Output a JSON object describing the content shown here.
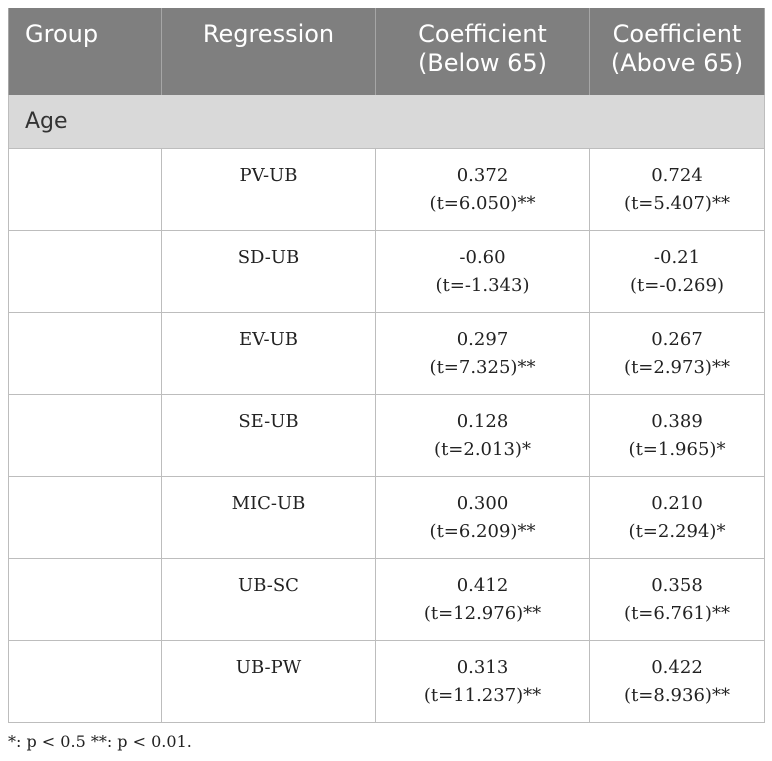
{
  "table": {
    "headers": {
      "group": "Group",
      "regression": "Regression",
      "coef_below": [
        "Coefficient",
        "(Below 65)"
      ],
      "coef_above": [
        "Coefficient",
        "(Above 65)"
      ]
    },
    "group_label": "Age",
    "rows": [
      {
        "group": "",
        "regression": "PV-UB",
        "below_coef": "0.372",
        "below_t": "(t=6.050)**",
        "above_coef": "0.724",
        "above_t": "(t=5.407)**"
      },
      {
        "group": "",
        "regression": "SD-UB",
        "below_coef": "-0.60",
        "below_t": "(t=-1.343)",
        "above_coef": "-0.21",
        "above_t": "(t=-0.269)"
      },
      {
        "group": "",
        "regression": "EV-UB",
        "below_coef": "0.297",
        "below_t": "(t=7.325)**",
        "above_coef": "0.267",
        "above_t": "(t=2.973)**"
      },
      {
        "group": "",
        "regression": "SE-UB",
        "below_coef": "0.128",
        "below_t": "(t=2.013)*",
        "above_coef": "0.389",
        "above_t": "(t=1.965)*"
      },
      {
        "group": "",
        "regression": "MIC-UB",
        "below_coef": "0.300",
        "below_t": "(t=6.209)**",
        "above_coef": "0.210",
        "above_t": "(t=2.294)*"
      },
      {
        "group": "",
        "regression": "UB-SC",
        "below_coef": "0.412",
        "below_t": "(t=12.976)**",
        "above_coef": "0.358",
        "above_t": "(t=6.761)**"
      },
      {
        "group": "",
        "regression": "UB-PW",
        "below_coef": "0.313",
        "below_t": "(t=11.237)**",
        "above_coef": "0.422",
        "above_t": "(t=8.936)**"
      }
    ]
  },
  "footnote": "*: p < 0.5 **: p < 0.01.",
  "colors": {
    "header_bg": "#7f7f7f",
    "header_text": "#ffffff",
    "group_row_bg": "#d9d9d9",
    "border": "#bdbdbd"
  }
}
